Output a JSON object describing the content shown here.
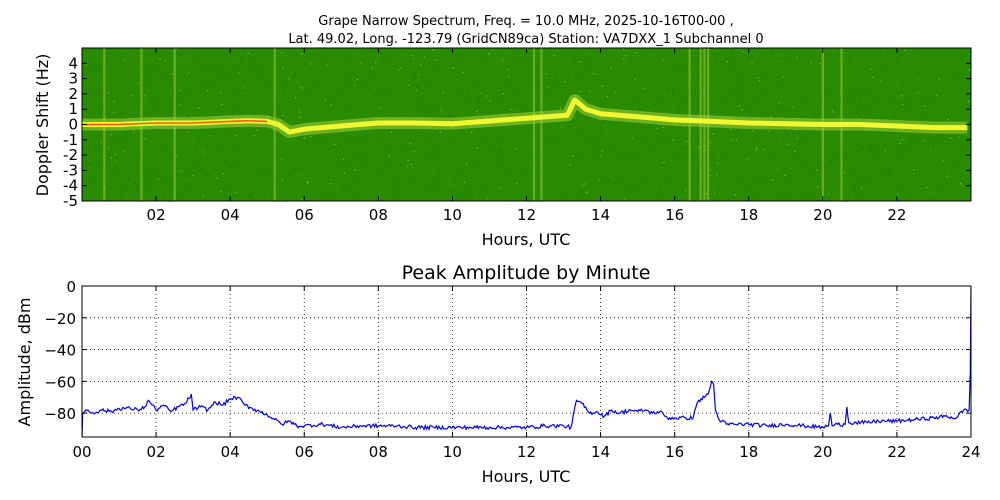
{
  "chart_data": [
    {
      "type": "heatmap",
      "title_line1": "Grape Narrow Spectrum, Freq. = 10.0 MHz, 2025-10-16T00-00 ,",
      "title_line2": "Lat.  49.02, Long. -123.79 (GridCN89ca) Station: VA7DXX_1 Subchannel 0",
      "xlabel": "Hours, UTC",
      "ylabel": "Doppler Shift (Hz)",
      "xlim": [
        0,
        24
      ],
      "ylim": [
        -5,
        5
      ],
      "x_ticks": [
        2,
        4,
        6,
        8,
        10,
        12,
        14,
        16,
        18,
        20,
        22
      ],
      "x_tick_labels": [
        "02",
        "04",
        "06",
        "08",
        "10",
        "12",
        "14",
        "16",
        "18",
        "20",
        "22"
      ],
      "y_ticks": [
        -5,
        -4,
        -3,
        -2,
        -1,
        0,
        1,
        2,
        3,
        4
      ],
      "y_tick_labels": [
        "-5",
        "-4",
        "-3",
        "-2",
        "-1",
        "0",
        "1",
        "2",
        "3",
        "4"
      ],
      "colors": {
        "background": "#2a8a00",
        "mid": "#9acd32",
        "high": "#ffff33",
        "peak": "#ff3300"
      },
      "trace": {
        "hours": [
          0,
          0.5,
          1,
          1.5,
          2,
          2.5,
          3,
          3.5,
          4,
          4.5,
          5,
          5.3,
          5.6,
          6,
          7,
          8,
          9,
          10,
          13.1,
          13.3,
          13.6,
          14,
          14.5,
          15,
          16,
          17,
          18,
          19,
          20,
          21,
          22,
          23,
          23.9
        ],
        "doppler_hz": [
          0,
          0,
          0,
          0.05,
          0.1,
          0.1,
          0.1,
          0.15,
          0.2,
          0.25,
          0.2,
          0,
          -0.5,
          -0.3,
          -0.1,
          0.1,
          0.1,
          0.05,
          0.6,
          1.6,
          1.0,
          0.7,
          0.6,
          0.5,
          0.3,
          0.2,
          0.1,
          0.05,
          0,
          0,
          -0.1,
          -0.2,
          -0.2
        ],
        "intensity": [
          0.9,
          0.95,
          0.85,
          0.9,
          0.95,
          0.9,
          0.95,
          0.9,
          0.95,
          0.9,
          0.8,
          0.6,
          0.5,
          0.4,
          0.4,
          0.4,
          0.35,
          0.3,
          0.8,
          0.7,
          0.8,
          0.75,
          0.7,
          0.7,
          0.7,
          0.8,
          0.55,
          0.5,
          0.55,
          0.55,
          0.6,
          0.7,
          0.7
        ]
      },
      "vertical_streaks_hours": [
        0.6,
        1.6,
        2.5,
        5.2,
        12.2,
        12.4,
        16.4,
        16.7,
        16.8,
        16.9,
        20.0,
        20.5
      ]
    },
    {
      "type": "line",
      "title": "Peak Amplitude by Minute",
      "xlabel": "Hours, UTC",
      "ylabel": "Amplitude, dBm",
      "xlim": [
        0,
        24
      ],
      "ylim": [
        -95,
        0
      ],
      "x_ticks": [
        0,
        2,
        4,
        6,
        8,
        10,
        12,
        14,
        16,
        18,
        20,
        22,
        24
      ],
      "x_tick_labels": [
        "00",
        "02",
        "04",
        "06",
        "08",
        "10",
        "12",
        "14",
        "16",
        "18",
        "20",
        "22",
        "24"
      ],
      "y_ticks": [
        0,
        -20,
        -40,
        -60,
        -80
      ],
      "y_tick_labels": [
        "0",
        "−20",
        "−40",
        "−60",
        "−80"
      ],
      "grid": true,
      "line_color": "#0000ee",
      "series": [
        {
          "x": [
            0,
            0.02,
            0.1,
            0.3,
            0.5,
            0.8,
            1.0,
            1.3,
            1.5,
            1.7,
            1.8,
            2.0,
            2.2,
            2.4,
            2.6,
            2.8,
            2.95,
            3.0,
            3.2,
            3.4,
            3.6,
            3.8,
            4.0,
            4.2,
            4.4,
            4.6,
            4.8,
            5.0,
            5.2,
            5.4,
            5.6,
            5.8,
            6.0,
            6.5,
            7.0,
            7.5,
            8.0,
            8.5,
            9.0,
            9.5,
            10.0,
            10.5,
            11.0,
            11.5,
            12.0,
            12.5,
            13.0,
            13.2,
            13.35,
            13.5,
            13.7,
            13.9,
            14.1,
            14.3,
            14.5,
            14.8,
            15.0,
            15.2,
            15.4,
            15.6,
            15.8,
            16.0,
            16.3,
            16.5,
            16.6,
            16.65,
            16.8,
            16.9,
            17.0,
            17.05,
            17.1,
            17.2,
            17.4,
            17.6,
            18.0,
            18.5,
            19.0,
            19.5,
            20.0,
            20.15,
            20.2,
            20.25,
            20.4,
            20.6,
            20.65,
            20.7,
            20.9,
            21.2,
            21.5,
            22.0,
            22.5,
            23.0,
            23.3,
            23.6,
            23.8,
            23.95,
            23.98,
            24.0
          ],
          "y": [
            -95,
            -80,
            -78,
            -80,
            -78,
            -79,
            -77,
            -77,
            -78,
            -76,
            -72,
            -78,
            -75,
            -79,
            -76,
            -74,
            -68,
            -78,
            -76,
            -78,
            -73,
            -75,
            -71,
            -70,
            -75,
            -77,
            -79,
            -81,
            -84,
            -87,
            -85,
            -88,
            -88,
            -87,
            -89,
            -88,
            -88,
            -88,
            -89,
            -89,
            -89,
            -89,
            -89,
            -89,
            -89,
            -88,
            -88,
            -89,
            -72,
            -74,
            -80,
            -79,
            -82,
            -78,
            -80,
            -78,
            -79,
            -78,
            -80,
            -79,
            -83,
            -83,
            -83,
            -83,
            -74,
            -72,
            -70,
            -68,
            -60,
            -62,
            -78,
            -84,
            -87,
            -87,
            -87,
            -88,
            -87,
            -88,
            -89,
            -88,
            -80,
            -88,
            -87,
            -87,
            -76,
            -86,
            -86,
            -86,
            -85,
            -85,
            -84,
            -83,
            -82,
            -83,
            -78,
            -78,
            -55,
            -1
          ]
        }
      ]
    }
  ]
}
